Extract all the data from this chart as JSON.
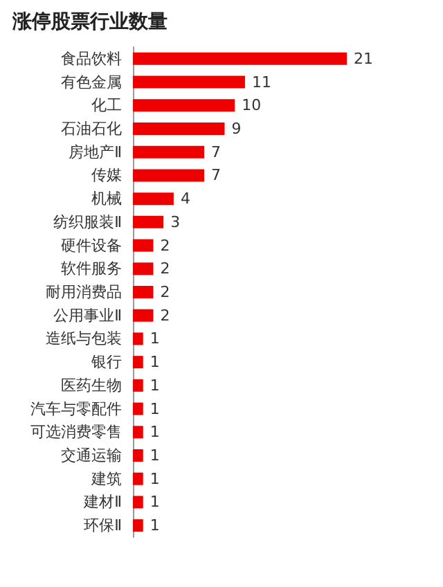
{
  "chart_data": {
    "type": "bar",
    "orientation": "horizontal",
    "title": "涨停股票行业数量",
    "categories": [
      "食品饮料",
      "有色金属",
      "化工",
      "石油石化",
      "房地产Ⅱ",
      "传媒",
      "机械",
      "纺织服装Ⅱ",
      "硬件设备",
      "软件服务",
      "耐用消费品",
      "公用事业Ⅱ",
      "造纸与包装",
      "银行",
      "医药生物",
      "汽车与零配件",
      "可选消费零售",
      "交通运输",
      "建筑",
      "建材Ⅱ",
      "环保Ⅱ"
    ],
    "values": [
      21,
      11,
      10,
      9,
      7,
      7,
      4,
      3,
      2,
      2,
      2,
      2,
      1,
      1,
      1,
      1,
      1,
      1,
      1,
      1,
      1
    ],
    "color": "#ee0000",
    "data_labels": true
  }
}
